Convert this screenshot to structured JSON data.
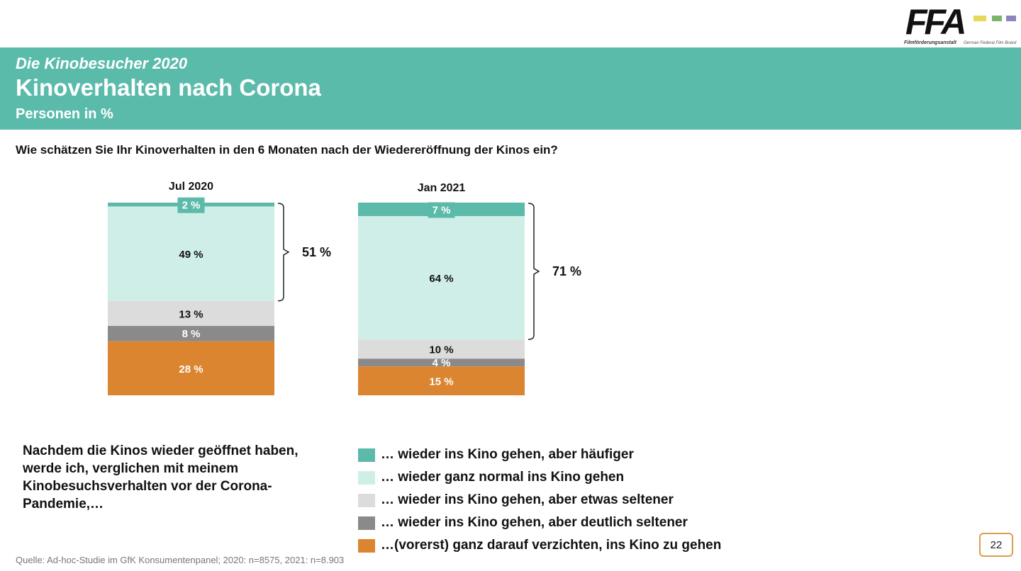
{
  "logo": {
    "text": "FFA",
    "subtitle": "Filmförderungsanstalt",
    "subtitle_en": "German Federal Film Board"
  },
  "header": {
    "supertitle": "Die Kinobesucher 2020",
    "title": "Kinoverhalten nach Corona",
    "subtitle": "Personen in %"
  },
  "question": "Wie schätzen Sie Ihr Kinoverhalten in den 6 Monaten nach der Wiedereröffnung der Kinos ein?",
  "statement": "Nachdem die Kinos wieder geöffnet haben, werde ich, verglichen mit meinem Kinobesuchsverhalten vor der Corona-Pandemie,…",
  "source": "Quelle: Ad-hoc-Studie im GfK Konsumentenpanel; 2020: n=8575, 2021: n=8.903",
  "page_number": "22",
  "colors": {
    "header": "#5bbbab"
  },
  "chart_data": {
    "type": "bar",
    "stacked": true,
    "categories": [
      "Jul 2020",
      "Jan 2021"
    ],
    "series": [
      {
        "name": "… wieder ins Kino gehen, aber häufiger",
        "values": [
          2,
          7
        ],
        "labels": [
          "2 %",
          "7 %"
        ],
        "color": "#5bbaa9",
        "label_color": "#ffffff"
      },
      {
        "name": "… wieder ganz normal ins Kino gehen",
        "values": [
          49,
          64
        ],
        "labels": [
          "49 %",
          "64 %"
        ],
        "color": "#d0eee8",
        "label_color": "#111111"
      },
      {
        "name": "… wieder ins Kino gehen, aber etwas seltener",
        "values": [
          13,
          10
        ],
        "labels": [
          "13 %",
          "10 %"
        ],
        "color": "#dcdcdc",
        "label_color": "#111111"
      },
      {
        "name": "… wieder ins Kino gehen, aber deutlich seltener",
        "values": [
          8,
          4
        ],
        "labels": [
          "8 %",
          "4 %"
        ],
        "color": "#8a8a8a",
        "label_color": "#ffffff"
      },
      {
        "name": "…(vorerst) ganz darauf verzichten, ins Kino zu gehen",
        "values": [
          28,
          15
        ],
        "labels": [
          "28 %",
          "15 %"
        ],
        "color": "#dc8530",
        "label_color": "#ffffff"
      }
    ],
    "brackets": [
      {
        "label": "51 %",
        "value": 51
      },
      {
        "label": "71 %",
        "value": 71
      }
    ],
    "ylim": [
      0,
      100
    ],
    "legend": "bottom"
  }
}
